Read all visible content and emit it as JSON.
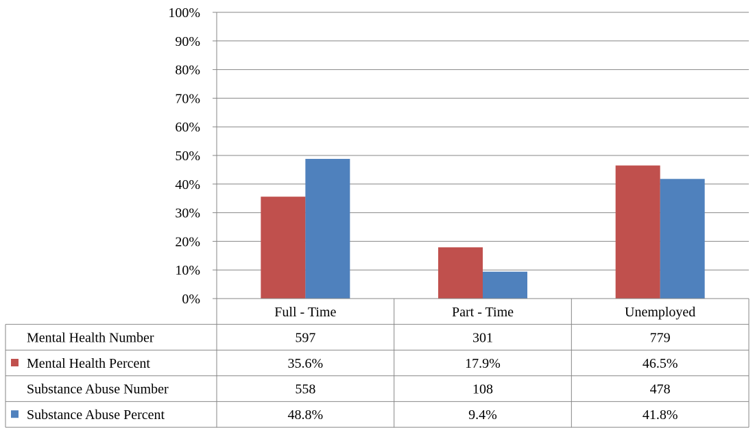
{
  "chart_data": {
    "type": "bar",
    "title": "",
    "xlabel": "",
    "ylabel": "",
    "ylim": [
      0,
      100
    ],
    "ytick_labels": [
      "0%",
      "10%",
      "20%",
      "30%",
      "40%",
      "50%",
      "60%",
      "70%",
      "80%",
      "90%",
      "100%"
    ],
    "grid": true,
    "legend": "data-table-left",
    "categories": [
      "Full - Time",
      "Part - Time",
      "Unemployed"
    ],
    "series": [
      {
        "name": "Mental Health Percent",
        "values": [
          35.6,
          17.9,
          46.5
        ],
        "color": "#c0504d"
      },
      {
        "name": "Substance Abuse Percent",
        "values": [
          48.8,
          9.4,
          41.8
        ],
        "color": "#4f81bd"
      }
    ],
    "data_table": [
      {
        "label": "Mental Health Number",
        "values": [
          "597",
          "301",
          "779"
        ],
        "legend_color": null
      },
      {
        "label": "Mental Health Percent",
        "values": [
          "35.6%",
          "17.9%",
          "46.5%"
        ],
        "legend_color": "#c0504d"
      },
      {
        "label": "Substance Abuse Number",
        "values": [
          "558",
          "108",
          "478"
        ],
        "legend_color": null
      },
      {
        "label": "Substance Abuse Percent",
        "values": [
          "48.8%",
          "9.4%",
          "41.8%"
        ],
        "legend_color": "#4f81bd"
      }
    ]
  }
}
